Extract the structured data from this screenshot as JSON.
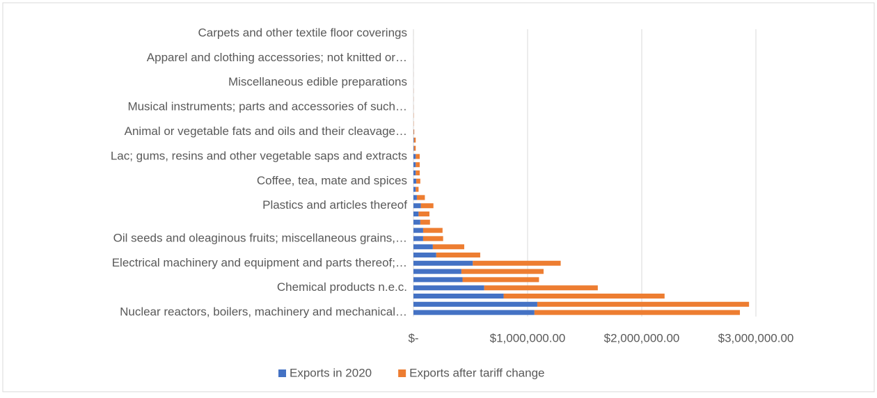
{
  "chart_data": {
    "type": "stacked-barh",
    "categories": [
      "Nuclear reactors, boilers, machinery and mechanical…",
      null,
      null,
      "Chemical products n.e.c.",
      null,
      null,
      "Electrical machinery and equipment and parts thereof;…",
      null,
      null,
      "Oil seeds and oleaginous fruits; miscellaneous grains,…",
      null,
      null,
      null,
      "Plastics and articles thereof",
      null,
      null,
      "Coffee, tea, mate and spices",
      null,
      null,
      "Lac; gums, resins and other vegetable saps and extracts",
      null,
      null,
      "Animal or vegetable fats and oils and their cleavage…",
      null,
      null,
      "Musical instruments; parts and accessories of such…",
      null,
      null,
      "Miscellaneous edible preparations",
      null,
      null,
      "Apparel and clothing accessories; not knitted or…",
      null,
      null,
      "Carpets and other textile floor coverings"
    ],
    "series": [
      {
        "name": "Exports in 2020",
        "color": "#4472c4",
        "values": [
          1060000,
          1085000,
          790000,
          620000,
          430000,
          420000,
          520000,
          200000,
          170000,
          85000,
          85000,
          60000,
          45000,
          65000,
          30000,
          20000,
          25000,
          20000,
          20000,
          20000,
          5000,
          5000,
          2000,
          1000,
          1000,
          500,
          500,
          500,
          300,
          300,
          200,
          200,
          100,
          100,
          100
        ]
      },
      {
        "name": "Exports after tariff change",
        "color": "#ed7d31",
        "values": [
          1800000,
          1855000,
          1410000,
          995000,
          670000,
          720000,
          770000,
          385000,
          275000,
          175000,
          170000,
          85000,
          95000,
          110000,
          70000,
          25000,
          35000,
          35000,
          35000,
          35000,
          15000,
          15000,
          5000,
          2000,
          2000,
          1000,
          1000,
          1000,
          500,
          500,
          300,
          300,
          200,
          200,
          200
        ]
      }
    ],
    "xlim": [
      0,
      3000000
    ],
    "xticks": [
      {
        "value": 0,
        "label": "$-"
      },
      {
        "value": 1000000,
        "label": "$1,000,000.00"
      },
      {
        "value": 2000000,
        "label": "$2,000,000.00"
      },
      {
        "value": 3000000,
        "label": "$3,000,000.00"
      }
    ],
    "grid": true,
    "legend": "bottom"
  }
}
